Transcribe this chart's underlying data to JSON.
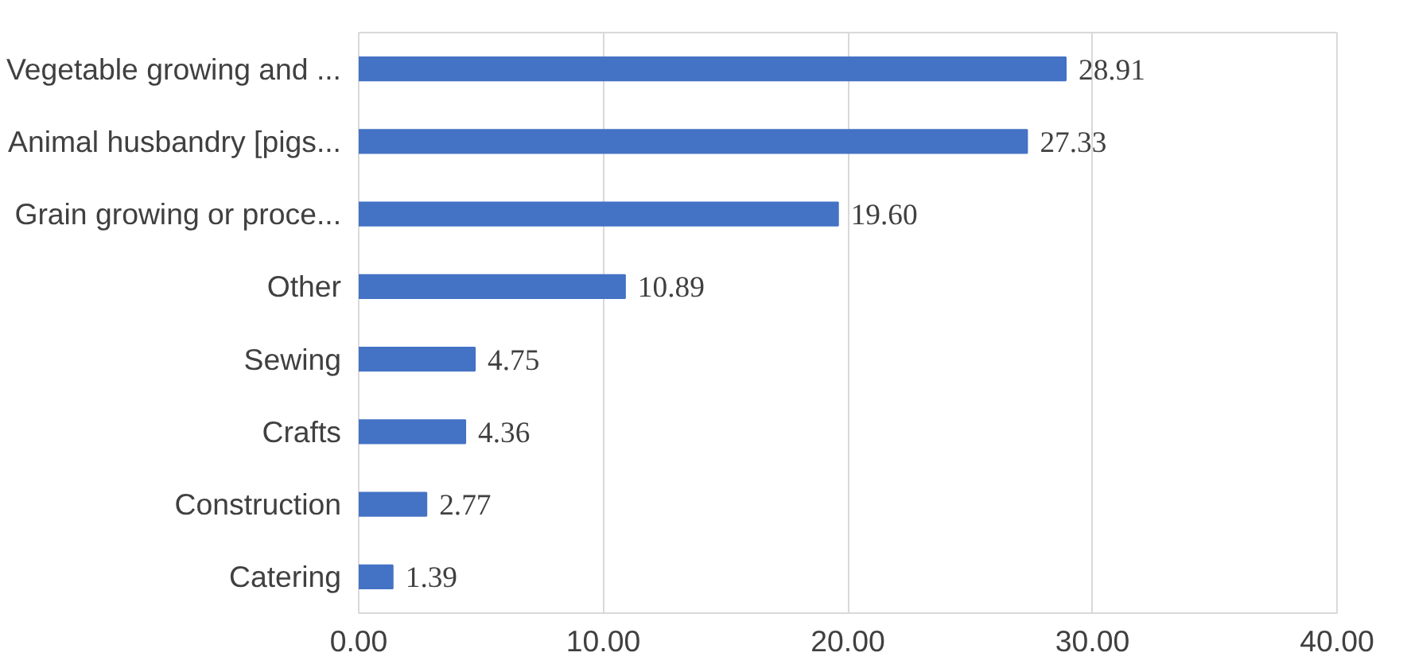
{
  "chart_data": {
    "type": "bar",
    "orientation": "horizontal",
    "categories": [
      "Vegetable growing and ...",
      "Animal husbandry [pigs...",
      "Grain growing or proce...",
      "Other",
      "Sewing",
      "Crafts",
      "Construction",
      "Catering"
    ],
    "values": [
      28.91,
      27.33,
      19.6,
      10.89,
      4.75,
      4.36,
      2.77,
      1.39
    ],
    "value_labels": [
      "28.91",
      "27.33",
      "19.60",
      "10.89",
      "4.75",
      "4.36",
      "2.77",
      "1.39"
    ],
    "color": "#4472c4",
    "xlim": [
      0,
      40
    ],
    "xticks": [
      {
        "value": 0,
        "label": "0.00"
      },
      {
        "value": 10,
        "label": "10.00"
      },
      {
        "value": 20,
        "label": "20.00"
      },
      {
        "value": 30,
        "label": "30.00"
      },
      {
        "value": 40,
        "label": "40.00"
      }
    ],
    "grid": "x"
  }
}
